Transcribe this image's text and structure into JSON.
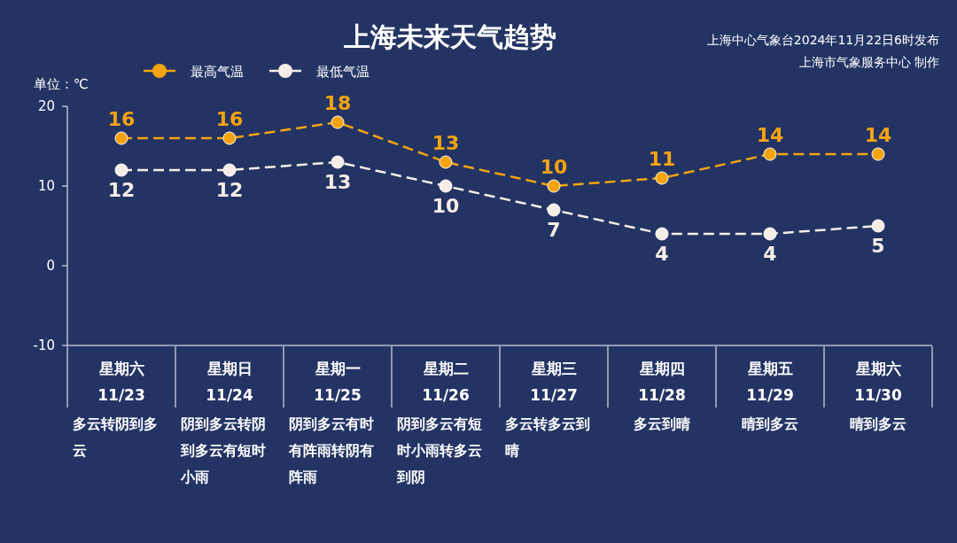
{
  "chart_data": {
    "type": "line",
    "title": "上海未来天气趋势",
    "ylabel": "单位：℃",
    "categories": [
      "星期六\n11/23",
      "星期日\n11/24",
      "星期一\n11/25",
      "星期二\n11/26",
      "星期三\n11/27",
      "星期四\n11/28",
      "星期五\n11/29",
      "星期六\n11/30"
    ],
    "series": [
      {
        "name": "最高气温",
        "color": "#f5a30f",
        "values": [
          16,
          16,
          18,
          13,
          10,
          11,
          14,
          14
        ]
      },
      {
        "name": "最低气温",
        "color": "#f6ede6",
        "values": [
          12,
          12,
          13,
          10,
          7,
          4,
          4,
          5
        ]
      }
    ],
    "ylim": [
      -10,
      20
    ],
    "yticks": [
      -10,
      0,
      10,
      20
    ],
    "grid": false,
    "legend": "top left",
    "marker": "circle",
    "line_style": "dashed",
    "data_labels": true,
    "annotations": [
      "上海中心气象台2024年11月22日6时发布",
      "上海市气象服务中心 制作",
      "多云转阴到多云",
      "阴到多云转阴到多云有短时小雨",
      "阴到多云有时有阵雨转阴有阵雨",
      "阴到多云有短时小雨转多云到阴",
      "多云转多云到晴",
      "多云到晴",
      "晴到多云",
      "晴到多云"
    ]
  }
}
